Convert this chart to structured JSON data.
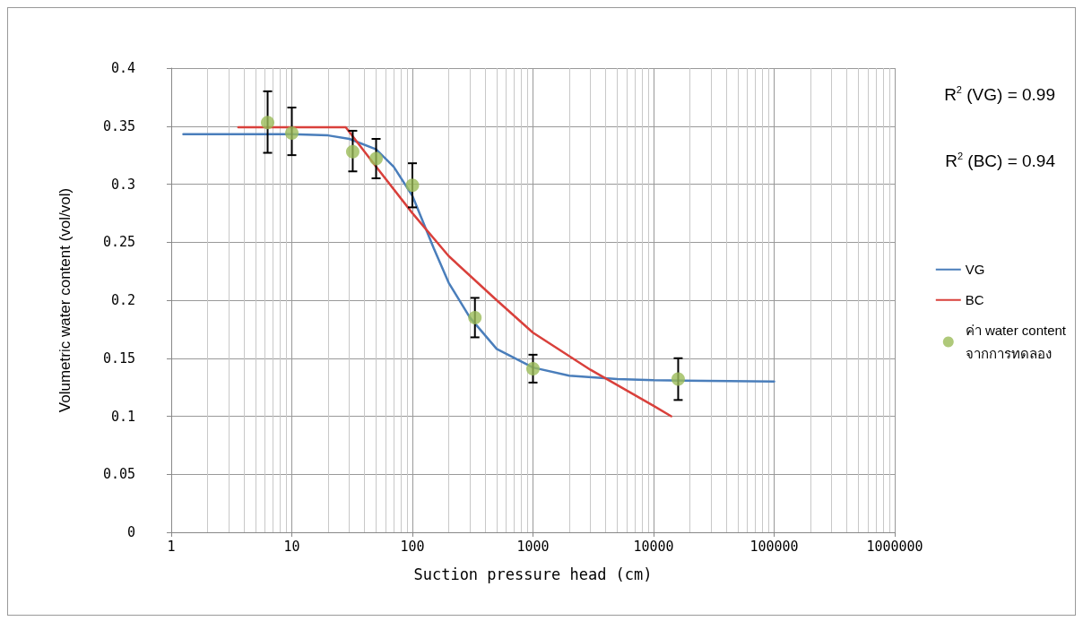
{
  "chart_data": {
    "type": "line",
    "xlabel": "Suction pressure head (cm)",
    "ylabel": "Volumetric water content (vol/vol)",
    "xlim": [
      1,
      1000000
    ],
    "xticks": [
      1,
      10,
      100,
      1000,
      10000,
      100000,
      1000000
    ],
    "log": "x",
    "ylim": [
      0,
      0.4
    ],
    "yticks": [
      0,
      0.05,
      0.1,
      0.15,
      0.2,
      0.25,
      0.3,
      0.35,
      0.4
    ],
    "grid": true,
    "legend": "right",
    "line_style": "solid",
    "marker": "none",
    "annotations": [
      "R$^{2}$ (VG) = 0.99",
      "R$^{2}$ (BC) = 0.94"
    ],
    "series": [
      {
        "name": "VG",
        "color": "#4a7ebb",
        "x": [
          1.26,
          5,
          10,
          20,
          30,
          50,
          70,
          100,
          150,
          200,
          300,
          500,
          1000,
          2000,
          5000,
          10000,
          100000
        ],
        "values": [
          0.343,
          0.343,
          0.343,
          0.342,
          0.339,
          0.33,
          0.315,
          0.29,
          0.245,
          0.215,
          0.185,
          0.158,
          0.142,
          0.135,
          0.132,
          0.131,
          0.13
        ]
      },
      {
        "name": "BC",
        "color": "#d9403b",
        "x": [
          3.6,
          10,
          28,
          50,
          100,
          200,
          500,
          1000,
          3000,
          10000,
          14000
        ],
        "values": [
          0.349,
          0.349,
          0.349,
          0.315,
          0.275,
          0.238,
          0.2,
          0.172,
          0.14,
          0.109,
          0.1
        ]
      },
      {
        "name": "ค่า water content\nจากการทดลอง",
        "type": "scatter",
        "marker": "circle",
        "color": "#9bbb59",
        "x": [
          6.3,
          10,
          32,
          50,
          100,
          330,
          1000,
          16000
        ],
        "values": [
          0.353,
          0.344,
          0.328,
          0.322,
          0.299,
          0.185,
          0.141,
          0.132
        ],
        "errors": [
          [
            0.327,
            0.38
          ],
          [
            0.325,
            0.366
          ],
          [
            0.311,
            0.346
          ],
          [
            0.305,
            0.339
          ],
          [
            0.28,
            0.318
          ],
          [
            0.168,
            0.202
          ],
          [
            0.129,
            0.153
          ],
          [
            0.114,
            0.15
          ]
        ]
      }
    ]
  }
}
